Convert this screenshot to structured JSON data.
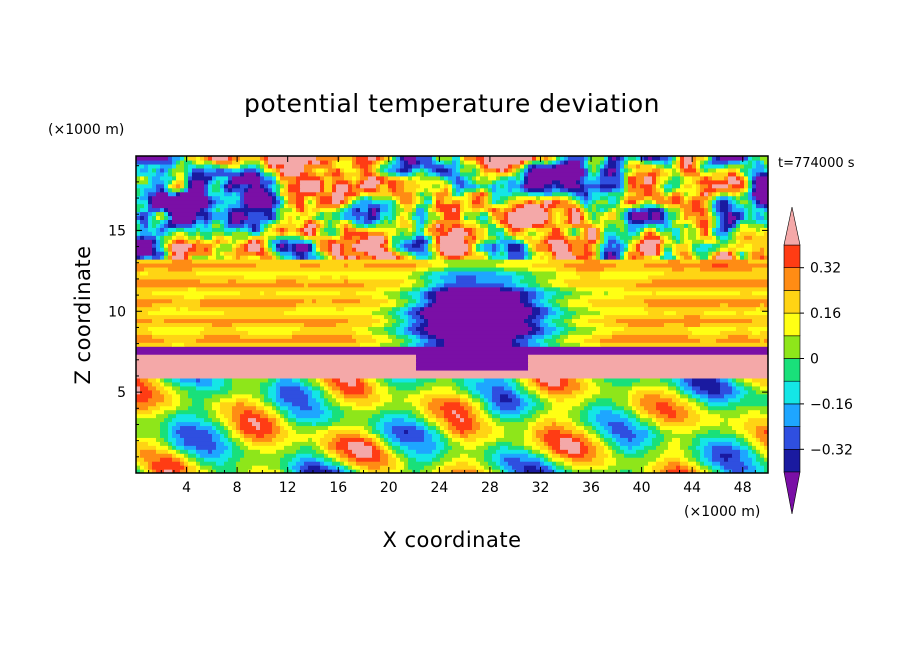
{
  "chart_data": {
    "type": "heatmap",
    "title": "potential temperature deviation",
    "xlabel": "X coordinate",
    "ylabel": "Z coordinate",
    "x_unit": "(×1000 m)",
    "y_unit": "(×1000 m)",
    "time_label": "t=774000 s",
    "xlim": [
      0,
      50
    ],
    "ylim": [
      0,
      19.6
    ],
    "x_ticks": [
      4,
      8,
      12,
      16,
      20,
      24,
      28,
      32,
      36,
      40,
      44,
      48
    ],
    "y_ticks": [
      5,
      10,
      15
    ],
    "colorbar": {
      "labels": [
        {
          "value": 0.32,
          "text": "0.32"
        },
        {
          "value": 0.16,
          "text": "0.16"
        },
        {
          "value": 0,
          "text": "0"
        },
        {
          "value": -0.16,
          "text": "−0.16"
        },
        {
          "value": -0.32,
          "text": "−0.32"
        }
      ],
      "levels": [
        -0.4,
        -0.32,
        -0.24,
        -0.16,
        -0.08,
        0,
        0.08,
        0.16,
        0.24,
        0.32,
        0.4
      ],
      "colors": [
        "#7a0fa6",
        "#1a1aa0",
        "#2f4fe0",
        "#1ea6ff",
        "#14e6e6",
        "#19e07a",
        "#8ee61a",
        "#ffff14",
        "#ffd414",
        "#ff8c14",
        "#ff3c14",
        "#f4a8a8"
      ],
      "extend": "both"
    },
    "regions": [
      {
        "z_range": [
          0,
          6
        ],
        "description_value": "mixed -0.32 to 0.4"
      },
      {
        "z_range": [
          6,
          7.5
        ],
        "value": 0.4
      },
      {
        "z_range": [
          7.5,
          13
        ],
        "value": 0.2
      },
      {
        "z_range": [
          13,
          19.6
        ],
        "value": "mixed -0.4 / 0.4"
      }
    ]
  }
}
